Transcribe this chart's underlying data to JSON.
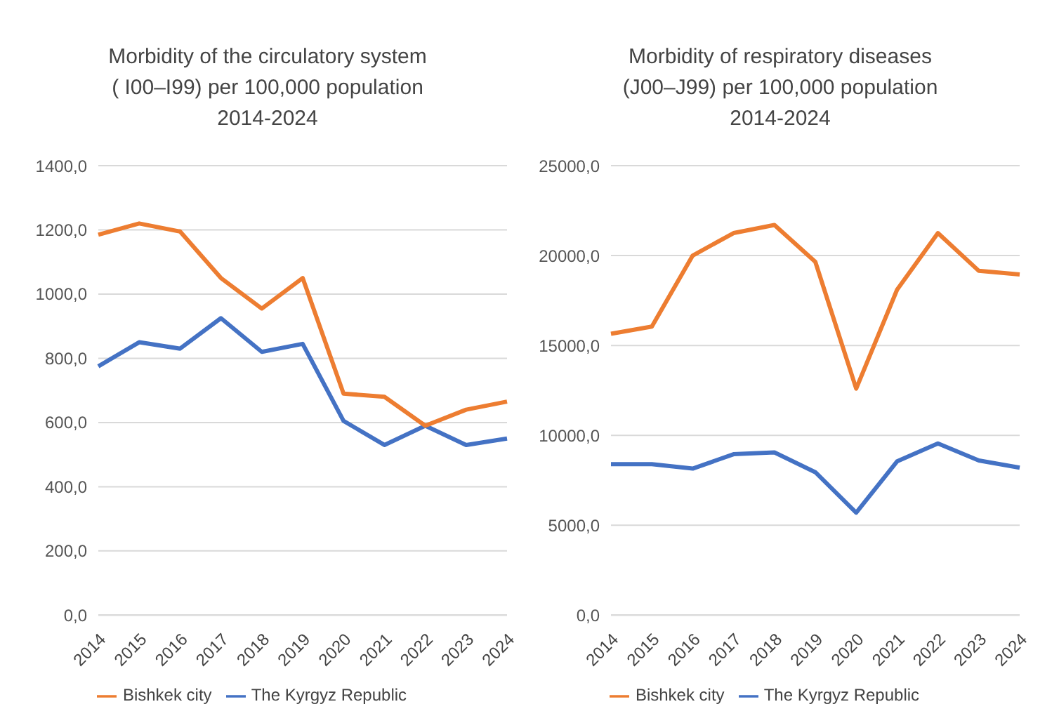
{
  "chart_data": [
    {
      "type": "line",
      "title": "Morbidity of the circulatory system\n( I00–I99)  per 100,000 population\n2014-2024",
      "categories": [
        "2014",
        "2015",
        "2016",
        "2017",
        "2018",
        "2019",
        "2020",
        "2021",
        "2022",
        "2023",
        "2024"
      ],
      "series": [
        {
          "name": "The Kyrgyz Republic",
          "color": "#4472c4",
          "values": [
            775,
            850,
            830,
            925,
            820,
            845,
            605,
            530,
            590,
            530,
            550
          ]
        },
        {
          "name": "Bishkek city",
          "color": "#ed7d31",
          "values": [
            1185,
            1220,
            1195,
            1050,
            955,
            1050,
            690,
            680,
            590,
            640,
            665
          ]
        }
      ],
      "ylim": [
        0,
        1400
      ],
      "yticks": [
        {
          "value": 0,
          "label": "0,0"
        },
        {
          "value": 200,
          "label": "200,0"
        },
        {
          "value": 400,
          "label": "400,0"
        },
        {
          "value": 600,
          "label": "600,0"
        },
        {
          "value": 800,
          "label": "800,0"
        },
        {
          "value": 1000,
          "label": "1000,0"
        },
        {
          "value": 1200,
          "label": "1200,0"
        },
        {
          "value": 1400,
          "label": "1400,0"
        }
      ],
      "grid": "y",
      "legend": "bottom",
      "marker": "none",
      "line_style": "solid"
    },
    {
      "type": "line",
      "title": "Morbidity  of respiratory diseases\n(J00–J99)   per 100,000 population\n2014-2024",
      "categories": [
        "2014",
        "2015",
        "2016",
        "2017",
        "2018",
        "2019",
        "2020",
        "2021",
        "2022",
        "2023",
        "2024"
      ],
      "series": [
        {
          "name": "The Kyrgyz Republic",
          "color": "#4472c4",
          "values": [
            8400,
            8400,
            8150,
            8950,
            9050,
            7950,
            5700,
            8550,
            9550,
            8600,
            8200
          ]
        },
        {
          "name": "Bishkek city",
          "color": "#ed7d31",
          "values": [
            15650,
            16050,
            20000,
            21250,
            21700,
            19650,
            12600,
            18100,
            21250,
            19150,
            18950
          ]
        }
      ],
      "ylim": [
        0,
        25000
      ],
      "yticks": [
        {
          "value": 0,
          "label": "0,0"
        },
        {
          "value": 5000,
          "label": "5000,0"
        },
        {
          "value": 10000,
          "label": "10000,0"
        },
        {
          "value": 15000,
          "label": "15000,0"
        },
        {
          "value": 20000,
          "label": "20000,0"
        },
        {
          "value": 25000,
          "label": "25000,0"
        }
      ],
      "grid": "y",
      "legend": "bottom",
      "marker": "none",
      "line_style": "solid"
    }
  ]
}
